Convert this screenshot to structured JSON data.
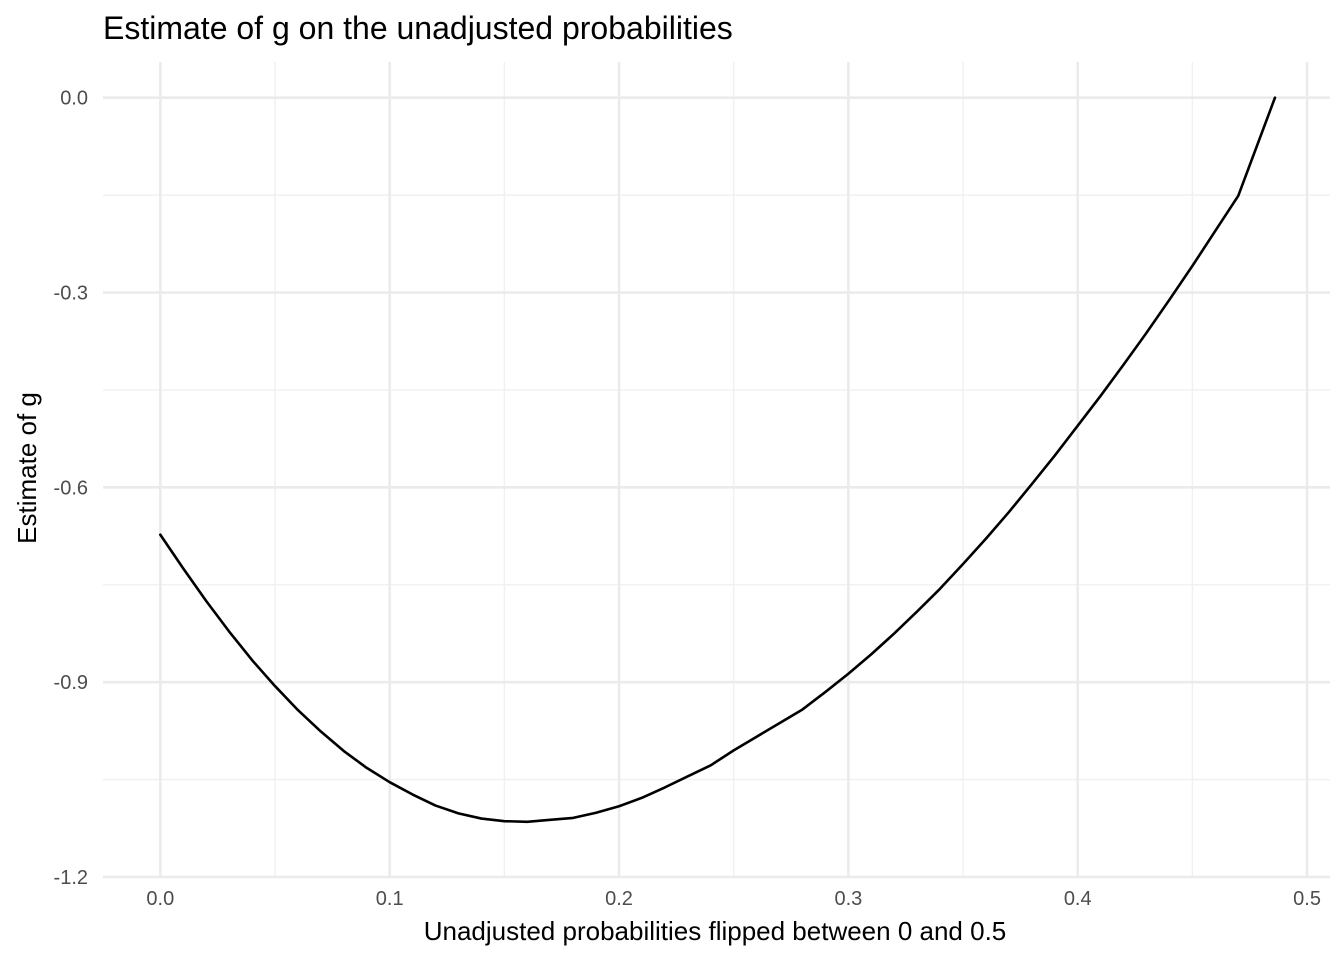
{
  "chart_data": {
    "type": "line",
    "title": "Estimate of g on the unadjusted probabilities",
    "xlabel": "Unadjusted probabilities flipped between 0 and 0.5",
    "ylabel": "Estimate of g",
    "xlim": [
      -0.025,
      0.51
    ],
    "ylim": [
      -1.2,
      0.055
    ],
    "x_ticks": [
      0.0,
      0.1,
      0.2,
      0.3,
      0.4,
      0.5
    ],
    "x_tick_labels": [
      "0.0",
      "0.1",
      "0.2",
      "0.3",
      "0.4",
      "0.5"
    ],
    "x_minor_ticks": [
      0.05,
      0.15,
      0.25,
      0.35,
      0.45
    ],
    "y_ticks": [
      0.0,
      -0.3,
      -0.6,
      -0.9,
      -1.2
    ],
    "y_tick_labels": [
      "0.0",
      "-0.3",
      "-0.6",
      "-0.9",
      "-1.2"
    ],
    "y_minor_ticks": [
      -0.15,
      -0.45,
      -0.75,
      -1.05
    ],
    "grid": true,
    "legend": "none",
    "series": [
      {
        "name": "g estimate",
        "color": "#000000",
        "x": [
          0.0,
          0.01,
          0.02,
          0.03,
          0.04,
          0.05,
          0.06,
          0.07,
          0.08,
          0.09,
          0.1,
          0.11,
          0.12,
          0.13,
          0.14,
          0.15,
          0.16,
          0.17,
          0.18,
          0.19,
          0.2,
          0.21,
          0.22,
          0.23,
          0.24,
          0.25,
          0.26,
          0.27,
          0.28,
          0.29,
          0.3,
          0.31,
          0.32,
          0.33,
          0.34,
          0.35,
          0.36,
          0.37,
          0.38,
          0.39,
          0.4,
          0.41,
          0.42,
          0.43,
          0.44,
          0.45,
          0.46,
          0.47,
          0.486
        ],
        "values": [
          -0.673,
          -0.725,
          -0.775,
          -0.822,
          -0.866,
          -0.906,
          -0.943,
          -0.976,
          -1.006,
          -1.032,
          -1.054,
          -1.073,
          -1.09,
          -1.102,
          -1.11,
          -1.114,
          -1.115,
          -1.112,
          -1.109,
          -1.101,
          -1.091,
          -1.078,
          -1.062,
          -1.045,
          -1.028,
          -1.005,
          -0.984,
          -0.963,
          -0.942,
          -0.915,
          -0.887,
          -0.857,
          -0.825,
          -0.791,
          -0.756,
          -0.718,
          -0.679,
          -0.638,
          -0.595,
          -0.551,
          -0.505,
          -0.459,
          -0.411,
          -0.362,
          -0.311,
          -0.259,
          -0.205,
          -0.151,
          -0.0
        ]
      }
    ]
  }
}
